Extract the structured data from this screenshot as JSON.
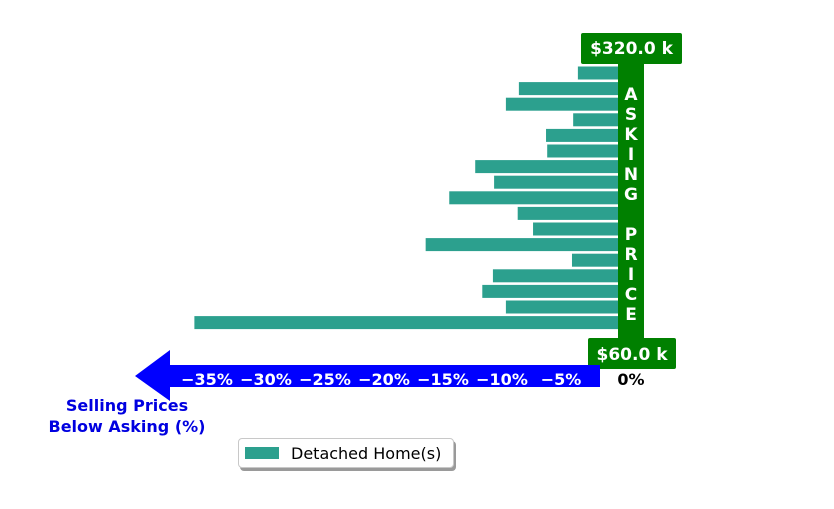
{
  "chart_data": {
    "type": "bar",
    "orientation": "horizontal",
    "series": [
      {
        "name": "Detached Home(s)",
        "values": [
          -3.4,
          -8.4,
          -9.5,
          -3.8,
          -6.1,
          -6.0,
          -12.1,
          -10.5,
          -14.3,
          -8.5,
          -7.2,
          -16.3,
          -3.9,
          -10.6,
          -11.5,
          -9.5,
          -35.9
        ]
      }
    ],
    "xlim": [
      -37,
      0
    ],
    "xticks": [
      -35,
      -30,
      -25,
      -20,
      -15,
      -10,
      -5
    ],
    "xtick_labels": [
      "−35%",
      "−30%",
      "−25%",
      "−20%",
      "−15%",
      "−10%",
      "−5%"
    ],
    "zero_label": "0%",
    "xlabel": "Selling Prices\nBelow Asking (%)",
    "xlabel_lines": [
      "Selling Prices",
      "Below Asking (%)"
    ],
    "top_price_label": "$320.0 k",
    "bottom_price_label": "$60.0 k",
    "vertical_banner_text": "ASKING PRICE",
    "legend": {
      "position": "bottom-center"
    },
    "grid": false,
    "colors": {
      "bar": "#2ca08e",
      "banner": "#008000",
      "axis_arrow": "#0000ff",
      "axis_label": "#0000e0",
      "label_text": "#ffffff"
    }
  }
}
